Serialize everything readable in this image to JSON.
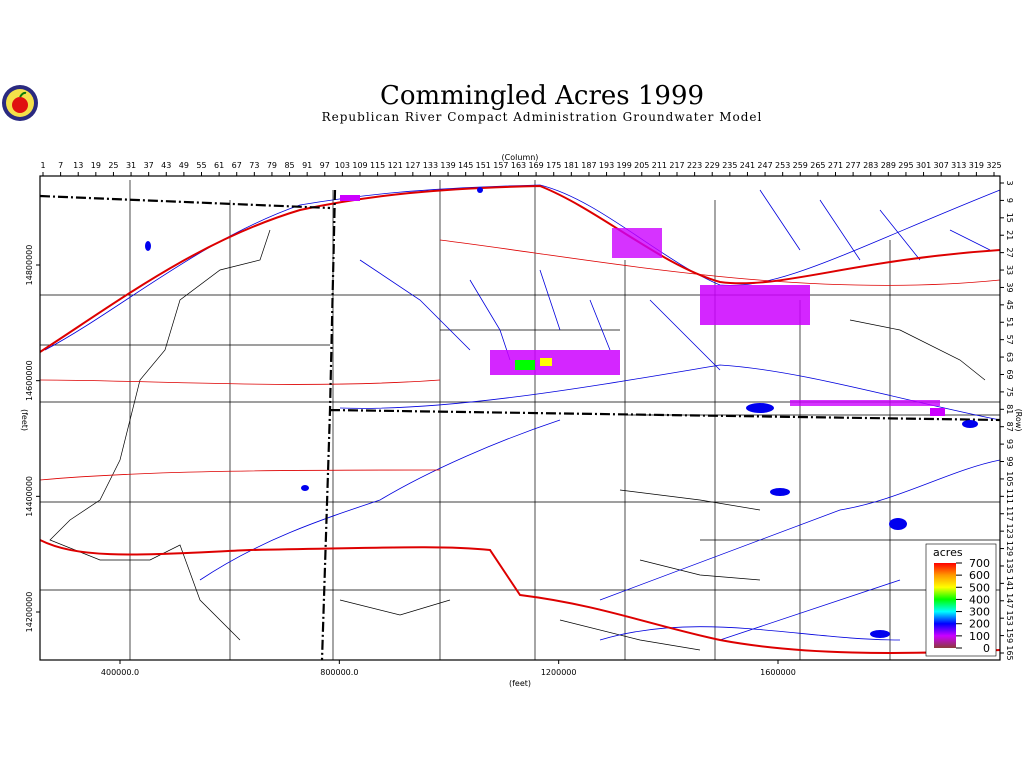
{
  "map": {
    "title": "Commingled Acres 1999",
    "subtitle": "Republican River Compact Administration Groundwater Model",
    "column_axis_label": "(Column)",
    "row_axis_label": "(Row)",
    "x_axis_label": "(feet)",
    "y_axis_label": "(feet)",
    "column_ticks": [
      1,
      7,
      13,
      19,
      25,
      31,
      37,
      43,
      49,
      55,
      61,
      67,
      73,
      79,
      85,
      91,
      97,
      103,
      109,
      115,
      121,
      127,
      133,
      139,
      145,
      151,
      157,
      163,
      169,
      175,
      181,
      187,
      193,
      199,
      205,
      211,
      217,
      223,
      229,
      235,
      241,
      247,
      253,
      259,
      265,
      271,
      277,
      283,
      289,
      295,
      301,
      307,
      313,
      319,
      325
    ],
    "row_ticks": [
      3,
      9,
      15,
      21,
      27,
      33,
      39,
      45,
      51,
      57,
      63,
      69,
      75,
      81,
      87,
      93,
      99,
      105,
      111,
      117,
      123,
      129,
      135,
      141,
      147,
      153,
      159,
      165
    ],
    "x_ticks": [
      {
        "value": 400000,
        "label": "400000.0"
      },
      {
        "value": 800000,
        "label": "800000.0"
      },
      1200000,
      1600000
    ],
    "y_ticks": [
      14800000,
      14600000,
      14400000,
      14200000
    ],
    "legend": {
      "title": "acres",
      "ticks": [
        700,
        600,
        500,
        400,
        300,
        200,
        100,
        0
      ],
      "colors": [
        "#ff0000",
        "#ff9900",
        "#ffff00",
        "#00ff00",
        "#00ffff",
        "#0000ff",
        "#cc00ff",
        "#8b3a3a"
      ]
    }
  }
}
